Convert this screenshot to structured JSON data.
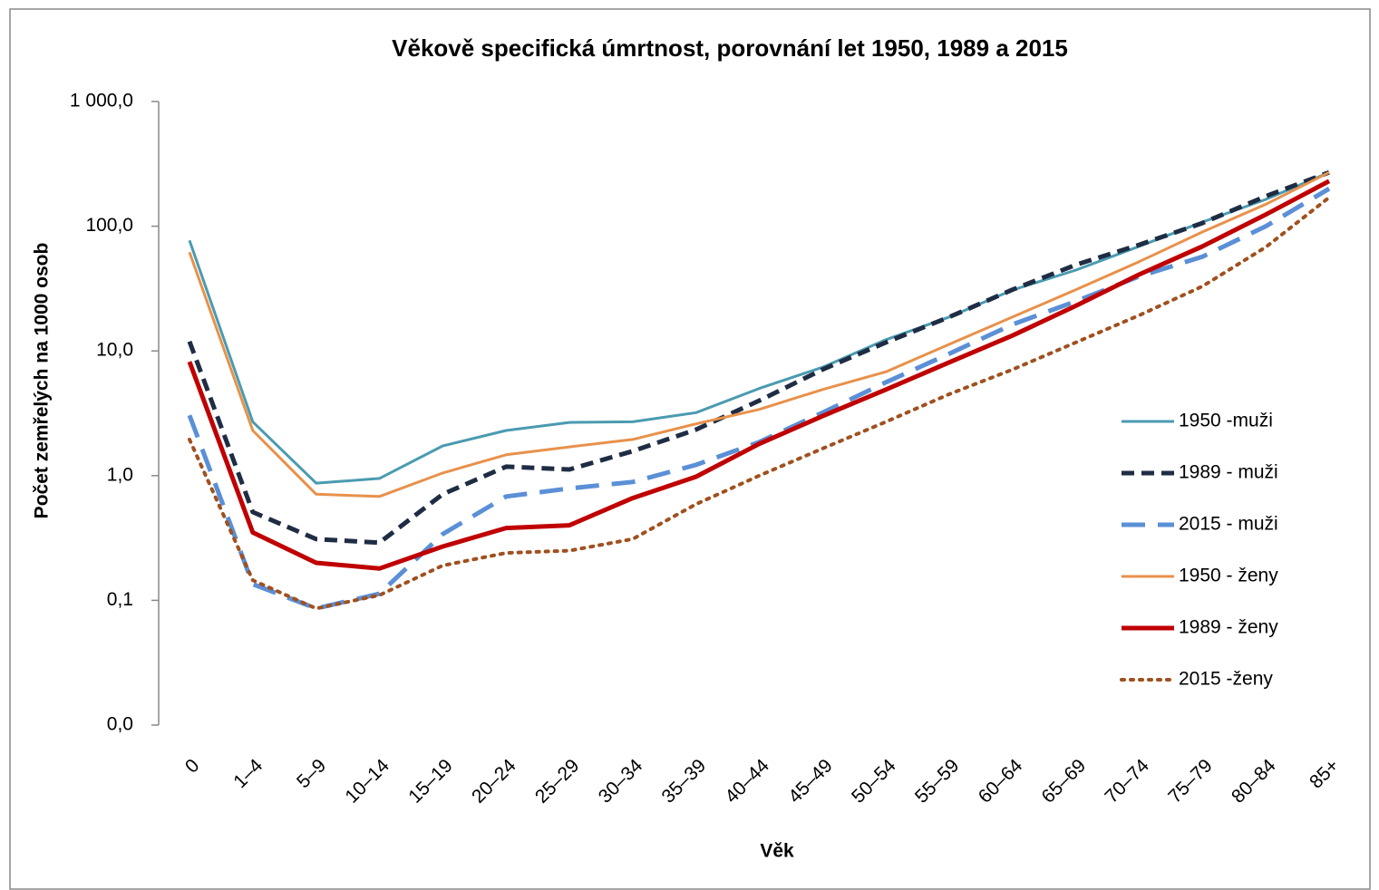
{
  "chart_data": {
    "type": "line",
    "title": "Věkově specifická úmrtnost, porovnání let 1950, 1989 a 2015",
    "x_label": "Věk",
    "y_label": "Počet zemřelých na 1000 osob",
    "log_scale": true,
    "ylim": [
      0.01,
      1000
    ],
    "yticks": [
      {
        "value": 0.01,
        "label": "0,0"
      },
      {
        "value": 0.1,
        "label": "0,1"
      },
      {
        "value": 1,
        "label": "1,0"
      },
      {
        "value": 10,
        "label": "10,0"
      },
      {
        "value": 100,
        "label": "100,0"
      },
      {
        "value": 1000,
        "label": "1 000,0"
      }
    ],
    "legend": "right",
    "categories": [
      "0",
      "1–4",
      "5–9",
      "10–14",
      "15–19",
      "20–24",
      "25–29",
      "30–34",
      "35–39",
      "40–44",
      "45–49",
      "50–54",
      "55–59",
      "60–64",
      "65–69",
      "70–74",
      "75–79",
      "80–84",
      "85+"
    ],
    "series": [
      {
        "name": "1950 -muži",
        "color": "#4a9bb0",
        "dash": "solid",
        "width": 3,
        "values": [
          77,
          2.7,
          0.87,
          0.95,
          1.73,
          2.3,
          2.67,
          2.7,
          3.2,
          5.0,
          7.4,
          12.3,
          18.7,
          30.8,
          44.5,
          69,
          108,
          164,
          270
        ]
      },
      {
        "name": "1989 - muži",
        "color": "#1f2d44",
        "dash": "dash",
        "width": 5,
        "values": [
          11.9,
          0.51,
          0.31,
          0.29,
          0.71,
          1.18,
          1.12,
          1.57,
          2.34,
          4.0,
          7.1,
          11.7,
          18.7,
          31,
          49,
          71,
          106,
          174,
          270
        ]
      },
      {
        "name": "2015 - muži",
        "color": "#5b8fd6",
        "dash": "longdash",
        "width": 5,
        "values": [
          3.05,
          0.135,
          0.086,
          0.113,
          0.34,
          0.68,
          0.79,
          0.89,
          1.22,
          1.86,
          3.2,
          5.6,
          9.5,
          16.3,
          25,
          39.6,
          57,
          100,
          200
        ]
      },
      {
        "name": "1950 - ženy",
        "color": "#e8914b",
        "dash": "solid",
        "width": 3,
        "values": [
          62,
          2.3,
          0.71,
          0.68,
          1.05,
          1.47,
          1.7,
          1.95,
          2.6,
          3.4,
          4.9,
          6.8,
          11.3,
          18.7,
          31,
          52,
          90,
          150,
          270
        ]
      },
      {
        "name": "1989 - ženy",
        "color": "#c00000",
        "dash": "solid",
        "width": 5,
        "values": [
          8.2,
          0.35,
          0.2,
          0.18,
          0.27,
          0.38,
          0.4,
          0.66,
          0.98,
          1.8,
          3.0,
          4.9,
          8.1,
          13.3,
          23,
          41,
          69,
          124,
          230
        ]
      },
      {
        "name": "2015 -ženy",
        "color": "#a0501e",
        "dash": "dot",
        "width": 4,
        "values": [
          1.95,
          0.145,
          0.086,
          0.11,
          0.19,
          0.24,
          0.25,
          0.31,
          0.59,
          1.0,
          1.65,
          2.7,
          4.5,
          7.1,
          11.7,
          19.3,
          33,
          68,
          170
        ]
      }
    ]
  }
}
